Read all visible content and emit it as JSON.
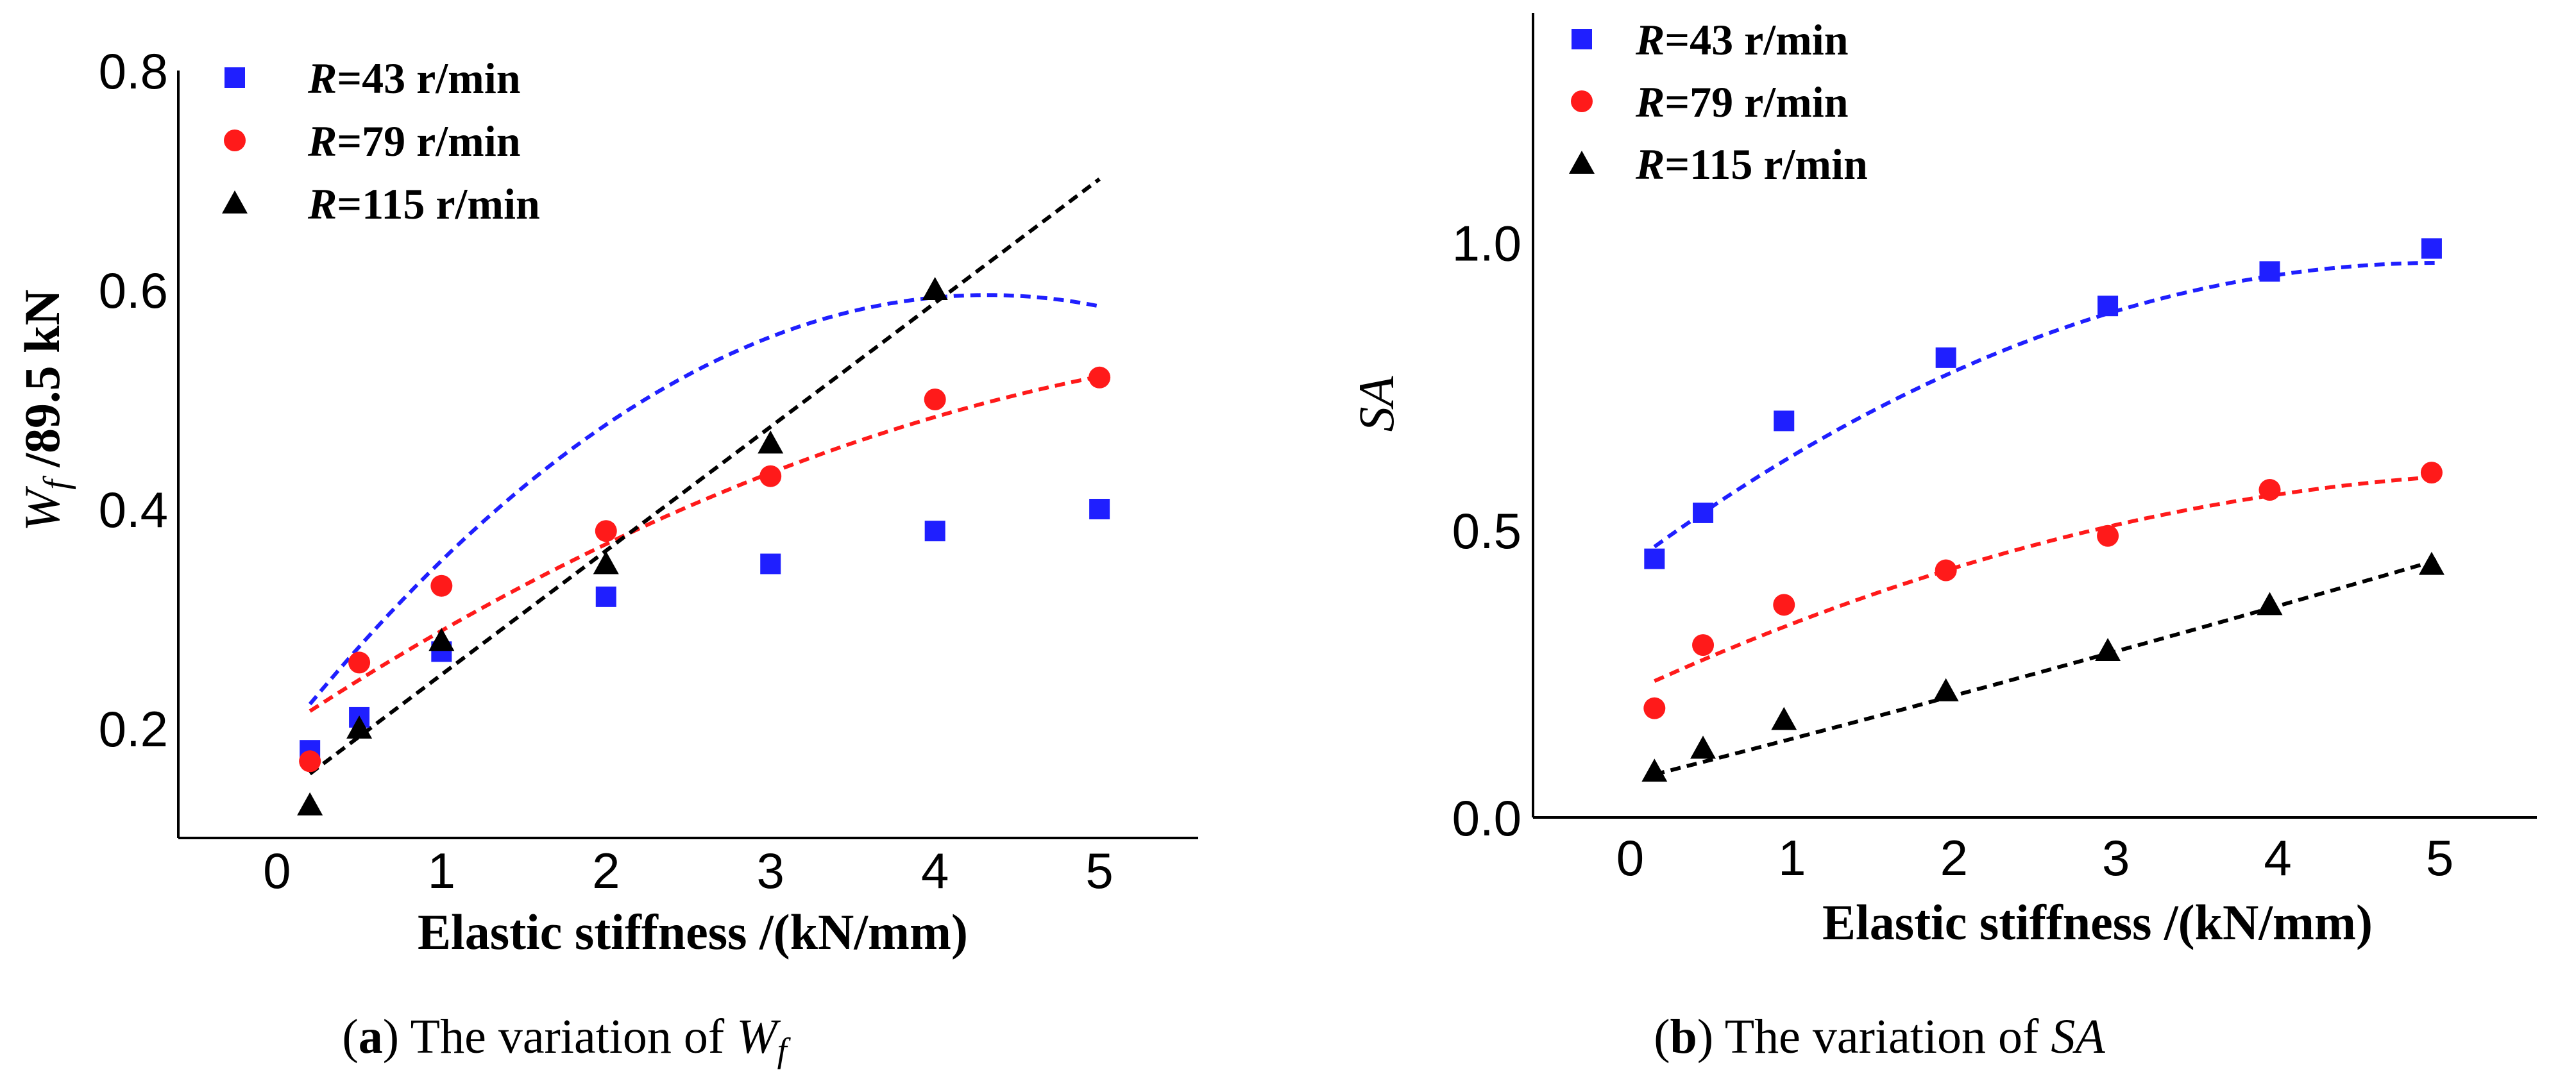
{
  "colors": {
    "blue": "#1f1fff",
    "red": "#ff1a1a",
    "black": "#000000"
  },
  "chart_data": [
    {
      "type": "scatter",
      "panel": "a",
      "caption": {
        "letter": "a",
        "text": "The variation of ",
        "symbol": "W",
        "subscript": "f"
      },
      "xlabel": "Elastic stiffness /(kN/mm)",
      "ylabel": {
        "symbol": "W",
        "subscript": "f",
        "text": " /89.5 kN"
      },
      "xlim": [
        -0.6,
        5.6
      ],
      "ylim": [
        0.1,
        0.8
      ],
      "xticks": [
        "0",
        "1",
        "2",
        "3",
        "4",
        "5"
      ],
      "yticks": [
        "0.2",
        "0.4",
        "0.6",
        "0.8"
      ],
      "legend_position": "top-left",
      "series": [
        {
          "name": "R=43 r/min",
          "prefix": "R",
          "label": "=43 r/min",
          "color": "blue",
          "marker": "square",
          "x": [
            0.2,
            0.5,
            1,
            2,
            3,
            4,
            5
          ],
          "y": [
            0.18,
            0.21,
            0.27,
            0.32,
            0.35,
            0.38,
            0.4
          ],
          "fit": [
            0.185,
            0.19,
            -0.022
          ]
        },
        {
          "name": "R=79 r/min",
          "prefix": "R",
          "label": "=79 r/min",
          "color": "red",
          "marker": "circle",
          "x": [
            0.2,
            0.5,
            1,
            2,
            3,
            4,
            5
          ],
          "y": [
            0.17,
            0.26,
            0.33,
            0.38,
            0.43,
            0.5,
            0.52
          ],
          "fit": [
            0.196,
            0.1,
            -0.007
          ]
        },
        {
          "name": "R=115 r/min",
          "prefix": "R",
          "label": "=115 r/min",
          "color": "black",
          "marker": "triangle",
          "x": [
            0.2,
            0.5,
            1,
            2,
            3,
            4,
            5
          ],
          "y": [
            0.13,
            0.2,
            0.28,
            0.35,
            0.46,
            0.6,
            null
          ],
          "fit": [
            0.136,
            0.113,
            0
          ]
        }
      ]
    },
    {
      "type": "scatter",
      "panel": "b",
      "caption": {
        "letter": "b",
        "text": "The variation of ",
        "symbol": "SA",
        "subscript": ""
      },
      "xlabel": "Elastic stiffness /(kN/mm)",
      "ylabel": {
        "symbol": "SA",
        "subscript": "",
        "text": ""
      },
      "xlim": [
        -0.6,
        5.6
      ],
      "ylim": [
        0.0,
        1.4
      ],
      "xticks": [
        "0",
        "1",
        "2",
        "3",
        "4",
        "5"
      ],
      "yticks": [
        "0.0",
        "0.5",
        "1.0"
      ],
      "legend_position": "top-left",
      "series": [
        {
          "name": "R=43 r/min",
          "prefix": "R",
          "label": "=43 r/min",
          "color": "blue",
          "marker": "square",
          "x": [
            0.15,
            0.45,
            0.95,
            1.95,
            2.95,
            3.95,
            4.95
          ],
          "y": [
            0.45,
            0.53,
            0.69,
            0.8,
            0.89,
            0.95,
            0.99
          ],
          "fit": [
            0.44,
            0.21,
            -0.021
          ]
        },
        {
          "name": "R=79 r/min",
          "prefix": "R",
          "label": "=79 r/min",
          "color": "red",
          "marker": "circle",
          "x": [
            0.15,
            0.45,
            0.95,
            1.95,
            2.95,
            3.95,
            4.95
          ],
          "y": [
            0.19,
            0.3,
            0.37,
            0.43,
            0.49,
            0.57,
            0.6
          ],
          "fit": [
            0.218,
            0.13,
            -0.011
          ]
        },
        {
          "name": "R=115 r/min",
          "prefix": "R",
          "label": "=115 r/min",
          "color": "black",
          "marker": "triangle",
          "x": [
            0.15,
            0.45,
            0.95,
            1.95,
            2.95,
            3.95,
            4.95
          ],
          "y": [
            0.08,
            0.12,
            0.17,
            0.22,
            0.29,
            0.37,
            0.44
          ],
          "fit": [
            0.064,
            0.072,
            0.001
          ]
        }
      ]
    }
  ]
}
